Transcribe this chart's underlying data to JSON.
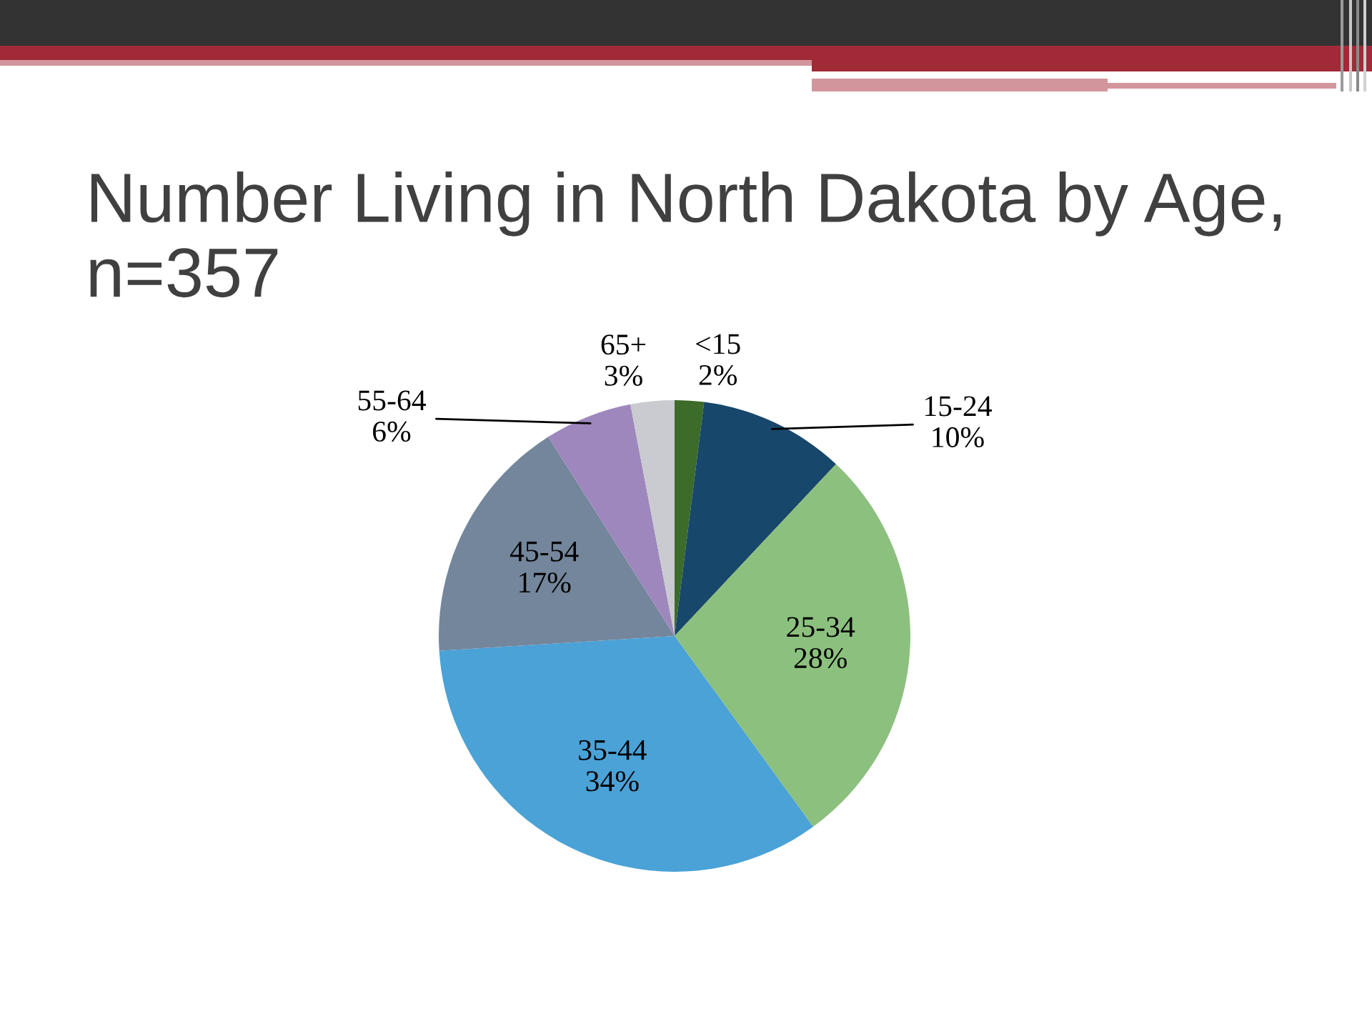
{
  "chart_data": {
    "type": "pie",
    "title": "Number Living in North Dakota by Age, n=357",
    "categories": [
      "<15",
      "15-24",
      "25-34",
      "35-44",
      "45-54",
      "55-64",
      "65+"
    ],
    "values": [
      2,
      10,
      28,
      34,
      17,
      6,
      3
    ],
    "colors": [
      "#3c6b2a",
      "#17476a",
      "#8cc07e",
      "#4aa2d7",
      "#73869b",
      "#9e87bd",
      "#c9cbd1"
    ],
    "value_labels": [
      "2%",
      "10%",
      "28%",
      "34%",
      "17%",
      "6%",
      "3%"
    ]
  }
}
